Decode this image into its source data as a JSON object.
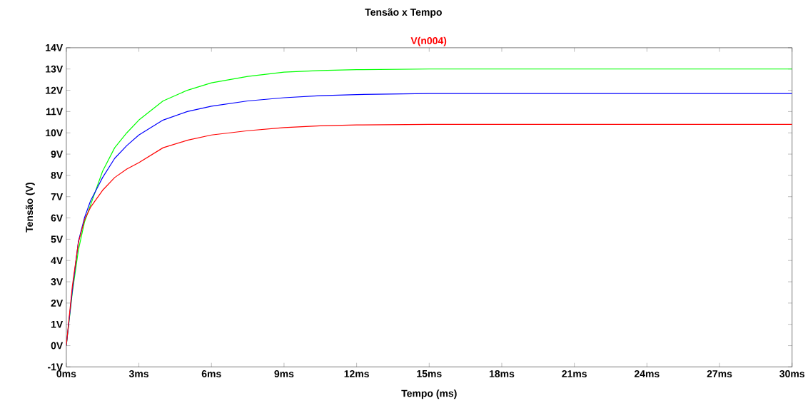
{
  "chart_data": {
    "type": "line",
    "title": "Tensão x Tempo",
    "xlabel": "Tempo (ms)",
    "ylabel": "Tensão (V)",
    "xlim": [
      0,
      30
    ],
    "ylim": [
      -1,
      14
    ],
    "xticks": [
      {
        "value": 0,
        "label": "0ms"
      },
      {
        "value": 3,
        "label": "3ms"
      },
      {
        "value": 6,
        "label": "6ms"
      },
      {
        "value": 9,
        "label": "9ms"
      },
      {
        "value": 12,
        "label": "12ms"
      },
      {
        "value": 15,
        "label": "15ms"
      },
      {
        "value": 18,
        "label": "18ms"
      },
      {
        "value": 21,
        "label": "21ms"
      },
      {
        "value": 24,
        "label": "24ms"
      },
      {
        "value": 27,
        "label": "27ms"
      },
      {
        "value": 30,
        "label": "30ms"
      }
    ],
    "yticks": [
      {
        "value": -1,
        "label": "-1V"
      },
      {
        "value": 0,
        "label": "0V"
      },
      {
        "value": 1,
        "label": "1V"
      },
      {
        "value": 2,
        "label": "2V"
      },
      {
        "value": 3,
        "label": "3V"
      },
      {
        "value": 4,
        "label": "4V"
      },
      {
        "value": 5,
        "label": "5V"
      },
      {
        "value": 6,
        "label": "6V"
      },
      {
        "value": 7,
        "label": "7V"
      },
      {
        "value": 8,
        "label": "8V"
      },
      {
        "value": 9,
        "label": "9V"
      },
      {
        "value": 10,
        "label": "10V"
      },
      {
        "value": 11,
        "label": "11V"
      },
      {
        "value": 12,
        "label": "12V"
      },
      {
        "value": 13,
        "label": "13V"
      },
      {
        "value": 14,
        "label": "14V"
      }
    ],
    "x": [
      0,
      0.25,
      0.5,
      0.75,
      1,
      1.5,
      2,
      2.5,
      3,
      4,
      5,
      6,
      7.5,
      9,
      10.5,
      12,
      15,
      18,
      21,
      24,
      27,
      30
    ],
    "series": [
      {
        "color": "#00ff00",
        "values": [
          0,
          2.5,
          4.5,
          5.8,
          6.6,
          8.2,
          9.3,
          10.0,
          10.6,
          11.5,
          12.0,
          12.35,
          12.65,
          12.85,
          12.93,
          12.97,
          13.0,
          13.0,
          13.0,
          13.0,
          13.0,
          13.0
        ]
      },
      {
        "color": "#0000ff",
        "values": [
          0,
          2.6,
          4.9,
          6.0,
          6.8,
          7.9,
          8.8,
          9.4,
          9.9,
          10.6,
          11.0,
          11.25,
          11.5,
          11.65,
          11.75,
          11.8,
          11.85,
          11.85,
          11.85,
          11.85,
          11.85,
          11.85
        ]
      },
      {
        "name": "V(n004)",
        "color": "#ff0000",
        "values": [
          0,
          2.8,
          4.85,
          5.9,
          6.5,
          7.3,
          7.9,
          8.3,
          8.6,
          9.3,
          9.65,
          9.9,
          10.1,
          10.25,
          10.33,
          10.37,
          10.4,
          10.4,
          10.4,
          10.4,
          10.4,
          10.4
        ]
      }
    ],
    "grid": false,
    "marker": "none",
    "line_style": "solid"
  }
}
